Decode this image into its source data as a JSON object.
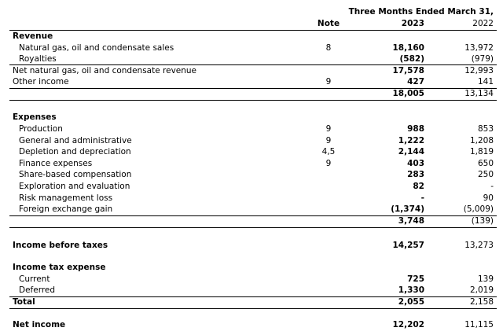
{
  "table": {
    "header": {
      "period": "Three Months Ended March 31,",
      "note": "Note",
      "years": [
        "2023",
        "2022"
      ]
    },
    "rows": [
      [
        "Revenue",
        null,
        null,
        null
      ],
      [
        "Natural gas, oil and condensate sales",
        "8",
        "18,160",
        "13,972"
      ],
      [
        "Royalties",
        null,
        "(582)",
        "(979)"
      ],
      [
        "Net natural gas, oil and condensate revenue",
        null,
        "17,578",
        "12,993"
      ],
      [
        "Other income",
        "9",
        "427",
        "141"
      ],
      [
        null,
        null,
        "18,005",
        "13,134"
      ],
      [
        "Expenses",
        null,
        null,
        null
      ],
      [
        "Production",
        "9",
        "988",
        "853"
      ],
      [
        "General and administrative",
        "9",
        "1,222",
        "1,208"
      ],
      [
        "Depletion and depreciation",
        "4,5",
        "2,144",
        "1,819"
      ],
      [
        "Finance expenses",
        "9",
        "403",
        "650"
      ],
      [
        "Share-based compensation",
        null,
        "283",
        "250"
      ],
      [
        "Exploration and evaluation",
        null,
        "82",
        "-"
      ],
      [
        "Risk management loss",
        null,
        "-",
        "90"
      ],
      [
        "Foreign exchange gain",
        null,
        "(1,374)",
        "(5,009)"
      ],
      [
        null,
        null,
        "3,748",
        "(139)"
      ],
      [
        "Income before taxes",
        null,
        "14,257",
        "13,273"
      ],
      [
        "Income tax expense",
        null,
        null,
        null
      ],
      [
        "Current",
        null,
        "725",
        "139"
      ],
      [
        "Deferred",
        null,
        "1,330",
        "2,019"
      ],
      [
        "Total",
        null,
        "2,055",
        "2,158"
      ],
      [
        "Net income",
        null,
        "12,202",
        "11,115"
      ]
    ]
  }
}
